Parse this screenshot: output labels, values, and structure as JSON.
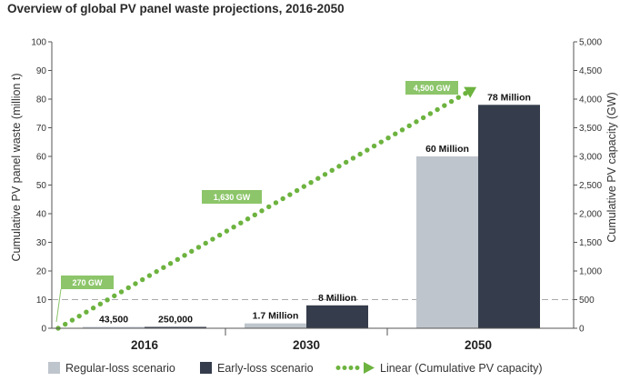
{
  "chart_data": {
    "type": "bar",
    "title": "Overview of global PV panel waste projections, 2016-2050",
    "ylabel": "Cumulative PV panel waste (million t)",
    "y2label": "Cumulative PV capacity (GW)",
    "ylim": [
      0,
      100
    ],
    "y2lim": [
      0,
      5000
    ],
    "yticks": [
      "0",
      "10",
      "20",
      "30",
      "40",
      "50",
      "60",
      "70",
      "80",
      "90",
      "100"
    ],
    "y2ticks": [
      "0",
      "500",
      "1,000",
      "1,500",
      "2,000",
      "2,500",
      "3,000",
      "3,500",
      "4,000",
      "4,500",
      "5,000"
    ],
    "categories": [
      "2016",
      "2030",
      "2050"
    ],
    "series": [
      {
        "name": "Regular-loss scenario",
        "values": [
          0.0435,
          1.7,
          60
        ],
        "labels": [
          "43,500",
          "1.7 Million",
          "60 Million"
        ],
        "color": "#bfc5cc"
      },
      {
        "name": "Early-loss scenario",
        "values": [
          0.25,
          8,
          78
        ],
        "labels": [
          "250,000",
          "8 Million",
          "78 Million"
        ],
        "color": "#353d4c"
      }
    ],
    "line": {
      "name": "Linear (Cumulative PV capacity)",
      "axis": "right",
      "color": "#6db33f",
      "points": [
        {
          "x": "2016",
          "y": 0
        },
        {
          "x": "2050",
          "y": 4100
        }
      ],
      "annotations": [
        "270 GW",
        "1,630 GW",
        "4,500 GW"
      ]
    },
    "reference_line_y": 10,
    "grid": false,
    "legend": "bottom"
  }
}
